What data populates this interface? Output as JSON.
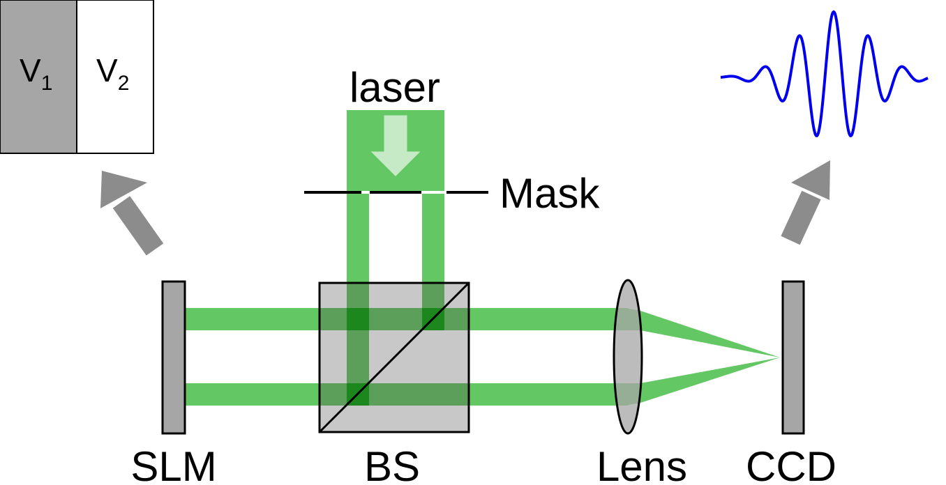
{
  "labels": {
    "laser": "laser",
    "mask": "Mask",
    "slm": "SLM",
    "bs": "BS",
    "lens": "Lens",
    "ccd": "CCD"
  },
  "slm_pattern": {
    "v1_letter": "V",
    "v1_subscript": "1",
    "v2_letter": "V",
    "v2_subscript": "2"
  },
  "colors": {
    "beam": "#63c763",
    "beam_overlap": "#1c871c",
    "beam_in_bs": "#4f9a4f",
    "component_gray": "#a6a6a6",
    "bs_gray": "#c8c8c8",
    "arrow_gray": "#8c8c8c",
    "laser_arrow_fill": "#c6eac6",
    "waveform": "#0000ee"
  },
  "icons": {
    "laser_arrow": "down-arrow",
    "slm_to_pattern": "up-left-arrow",
    "ccd_to_signal": "up-right-arrow"
  }
}
